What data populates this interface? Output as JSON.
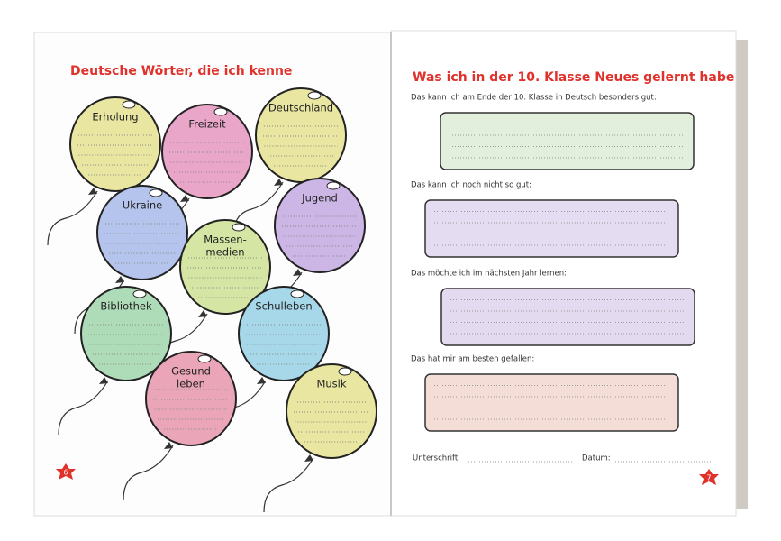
{
  "left_page": {
    "title": "Deutsche Wörter, die ich kenne",
    "page_number": "6",
    "balloons": [
      {
        "lines": [
          "Erholung"
        ]
      },
      {
        "lines": [
          "Freizeit"
        ]
      },
      {
        "lines": [
          "Deutschland"
        ]
      },
      {
        "lines": [
          "Ukraine"
        ]
      },
      {
        "lines": [
          "Jugend"
        ]
      },
      {
        "lines": [
          "Massen-",
          "medien"
        ]
      },
      {
        "lines": [
          "Bibliothek"
        ]
      },
      {
        "lines": [
          "Schulleben"
        ]
      },
      {
        "lines": [
          "Gesund",
          "leben"
        ]
      },
      {
        "lines": [
          "Musik"
        ]
      }
    ]
  },
  "right_page": {
    "title": "Was ich in der 10. Klasse Neues gelernt habe",
    "page_number": "7",
    "prompts": [
      "Das kann ich am Ende der 10. Klasse in Deutsch besonders gut:",
      "Das kann ich noch nicht so gut:",
      "Das möchte ich im nächsten Jahr lernen:",
      "Das hat mir am besten gefallen:"
    ],
    "signature": "Unterschrift:",
    "date": "Datum:"
  }
}
